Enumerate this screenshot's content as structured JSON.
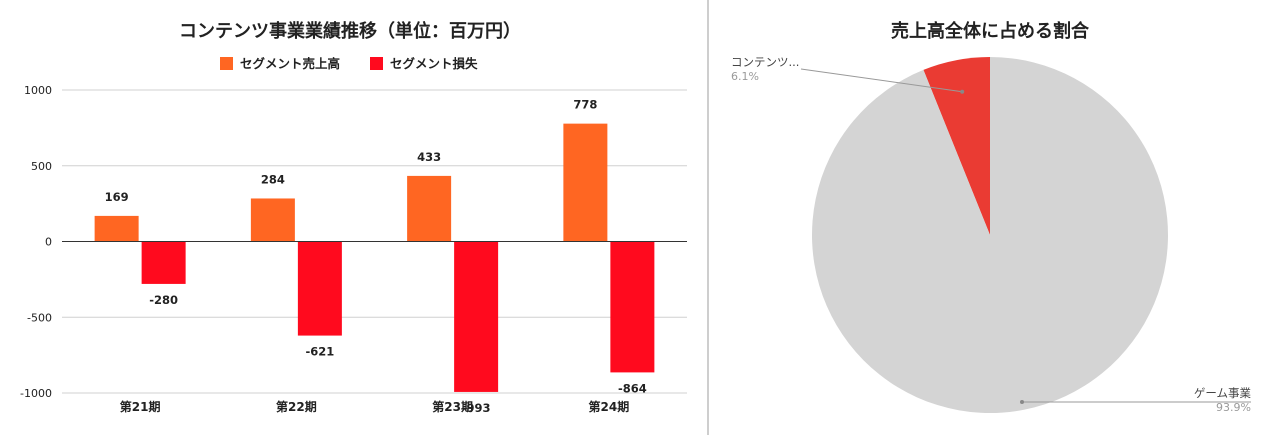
{
  "chart_data": [
    {
      "type": "bar",
      "title": "コンテンツ事業業績推移（単位：百万円）",
      "categories": [
        "第21期",
        "第22期",
        "第23期",
        "第24期"
      ],
      "series": [
        {
          "name": "セグメント売上高",
          "color": "#ff6622",
          "values": [
            169,
            284,
            433,
            778
          ],
          "labels": [
            "169",
            "284",
            "433",
            "778"
          ]
        },
        {
          "name": "セグメント損失",
          "color": "#ff0a1e",
          "values": [
            -280,
            -621,
            -993,
            -864
          ],
          "labels": [
            "-280",
            "-621",
            "-993",
            "-864"
          ]
        }
      ],
      "ylim": [
        -1000,
        1000
      ],
      "yticks": [
        1000,
        500,
        0,
        -500,
        -1000
      ],
      "ytick_labels": [
        "1000",
        "500",
        "0",
        "-500",
        "-1000"
      ],
      "grid": true,
      "legend_position": "top"
    },
    {
      "type": "pie",
      "title": "売上高全体に占める割合",
      "slices": [
        {
          "label": "コンテンツ...",
          "percent_label": "6.1%",
          "value": 6.1,
          "color": "#ea3b33"
        },
        {
          "label": "ゲーム事業",
          "percent_label": "93.9%",
          "value": 93.9,
          "color": "#d4d4d4"
        }
      ]
    }
  ],
  "colors": {
    "grid": "#d0d0d0",
    "zero_line": "#333333",
    "divider": "#9e9e9e",
    "leader": "#999999"
  }
}
